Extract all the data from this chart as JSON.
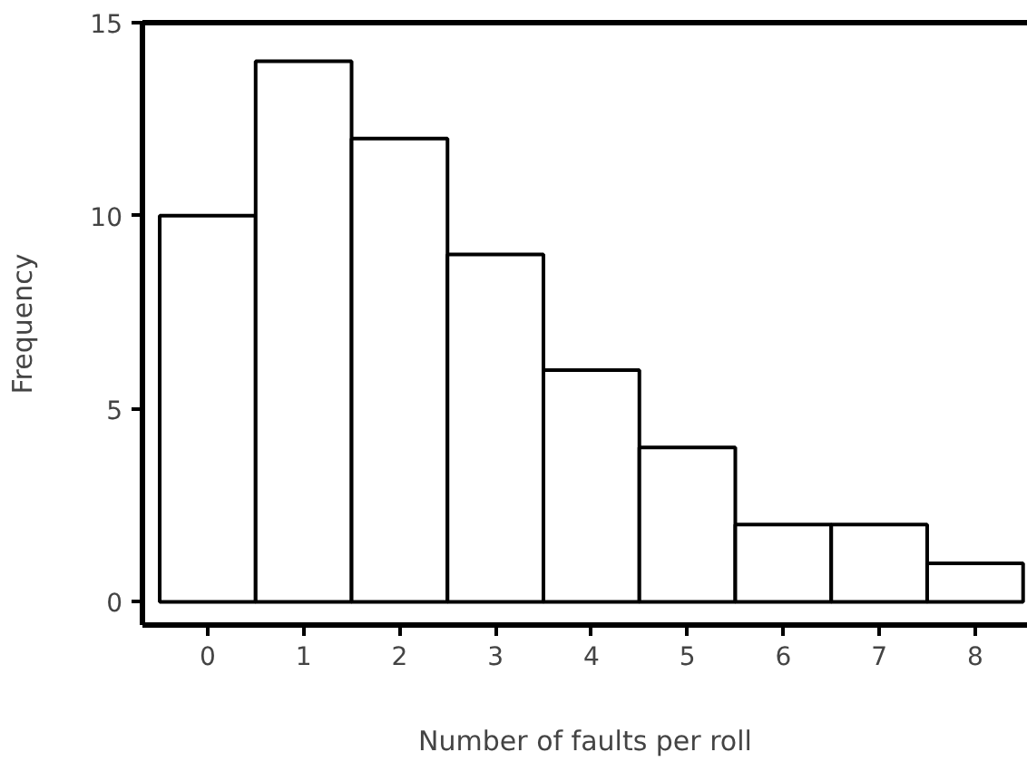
{
  "chart_data": {
    "type": "bar",
    "xlabel": "Number of faults per roll",
    "ylabel": "Frequency",
    "categories": [
      "0",
      "1",
      "2",
      "3",
      "4",
      "5",
      "6",
      "7",
      "8"
    ],
    "values": [
      10,
      14,
      12,
      9,
      6,
      4,
      2,
      2,
      1
    ],
    "color": "#ffffff",
    "ylim": [
      -0.6,
      15
    ],
    "yticks": [
      0,
      5,
      10,
      15
    ],
    "grid": false
  }
}
